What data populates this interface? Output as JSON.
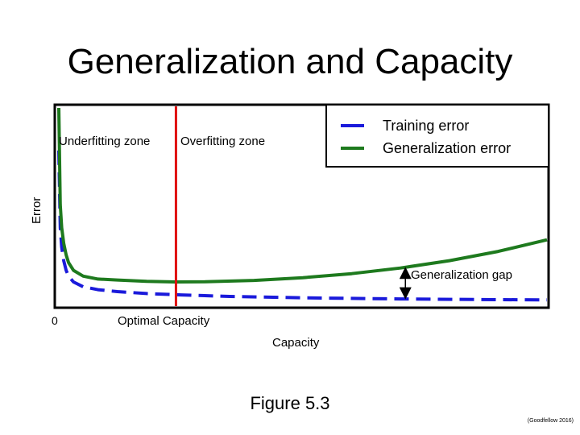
{
  "slide": {
    "title": "Generalization and Capacity",
    "caption": "Figure 5.3",
    "citation": "(Goodfellow 2016)"
  },
  "chart_data": {
    "type": "line",
    "ylabel": "Error",
    "xlabel": "Capacity",
    "xlim": [
      0,
      1
    ],
    "ylim": [
      0,
      1
    ],
    "x_tick_labels": [
      "0"
    ],
    "grid": false,
    "legend_position": "top-right",
    "series": [
      {
        "name": "Training error",
        "color": "#1a1adb",
        "style": "dashed",
        "x": [
          0.0,
          0.003,
          0.006,
          0.01,
          0.015,
          0.02,
          0.03,
          0.05,
          0.08,
          0.12,
          0.18,
          0.25,
          0.35,
          0.5,
          0.7,
          0.85,
          1.0
        ],
        "y": [
          0.78,
          0.38,
          0.28,
          0.21,
          0.16,
          0.13,
          0.1,
          0.075,
          0.06,
          0.05,
          0.04,
          0.033,
          0.025,
          0.018,
          0.012,
          0.009,
          0.007
        ]
      },
      {
        "name": "Generalization error",
        "color": "#1e7a1e",
        "style": "solid",
        "x": [
          0.0,
          0.003,
          0.006,
          0.01,
          0.015,
          0.02,
          0.03,
          0.05,
          0.08,
          0.12,
          0.18,
          0.24,
          0.3,
          0.4,
          0.5,
          0.6,
          0.7,
          0.8,
          0.9,
          1.0
        ],
        "y": [
          1.0,
          0.5,
          0.38,
          0.3,
          0.24,
          0.2,
          0.16,
          0.13,
          0.115,
          0.11,
          0.103,
          0.1,
          0.101,
          0.108,
          0.122,
          0.143,
          0.172,
          0.21,
          0.258,
          0.318
        ]
      }
    ],
    "annotations": {
      "underfitting_zone": "Underfitting zone",
      "overfitting_zone": "Overfitting zone",
      "optimal_capacity": "Optimal Capacity",
      "optimal_capacity_x": 0.24,
      "optimal_capacity_color": "#e01010",
      "generalization_gap": "Generalization gap",
      "generalization_gap_x": 0.71
    }
  }
}
